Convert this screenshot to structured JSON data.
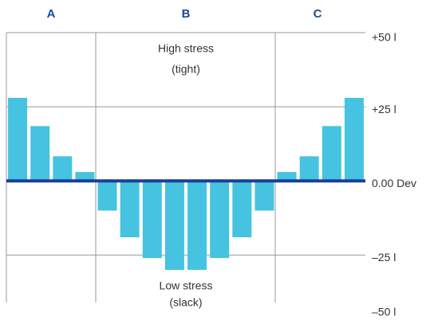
{
  "chart_data": {
    "type": "bar",
    "sections": [
      "A",
      "B",
      "C"
    ],
    "annotations": {
      "high": [
        "High stress",
        "(tight)"
      ],
      "low": [
        "Low stress",
        "(slack)"
      ]
    },
    "categories": [
      null,
      null,
      null,
      null,
      null,
      null,
      null,
      null,
      null,
      null,
      null,
      null,
      null,
      null,
      null,
      null
    ],
    "values": [
      28,
      18.5,
      8.3,
      3,
      -10,
      -19,
      -26,
      -30,
      -30,
      -26,
      -19,
      -10,
      3,
      8.3,
      18.5,
      28
    ],
    "color": "#45c3e0",
    "ylim": [
      -41,
      50
    ],
    "yticks": [
      {
        "value": 50,
        "label": "+50 l"
      },
      {
        "value": 25,
        "label": "+25 l"
      },
      {
        "value": 0,
        "label": "0.00 Dev"
      },
      {
        "value": -25,
        "label": "–25 l"
      },
      {
        "value": -50,
        "label": "–50 l"
      }
    ],
    "grid": true
  }
}
